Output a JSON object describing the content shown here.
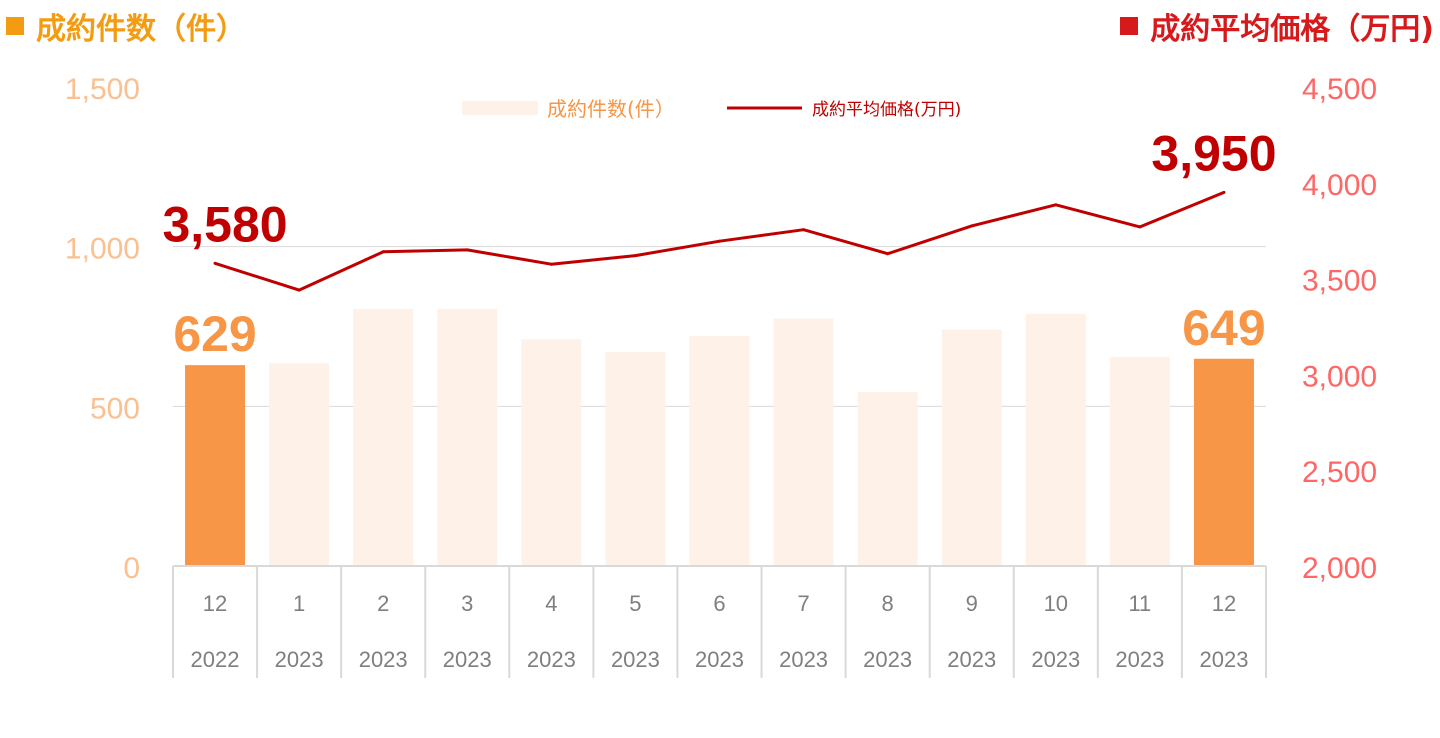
{
  "header": {
    "left_title": "成約件数（件）",
    "right_title": "成約平均価格（万円)"
  },
  "colors": {
    "bar_highlight": "#F79646",
    "bar_light": "#FDF1E8",
    "line": "#C00000",
    "left_axis_text": "#FAC090",
    "right_axis_text": "#FF6666",
    "left_title": "#F39C12",
    "right_title": "#D7191C",
    "gridline": "#D9D9D9",
    "category_text": "#7F7F7F",
    "category_border": "#D9D9D9"
  },
  "chart_data": {
    "type": "bar",
    "categories": [
      {
        "month": "12",
        "year": "2022"
      },
      {
        "month": "1",
        "year": "2023"
      },
      {
        "month": "2",
        "year": "2023"
      },
      {
        "month": "3",
        "year": "2023"
      },
      {
        "month": "4",
        "year": "2023"
      },
      {
        "month": "5",
        "year": "2023"
      },
      {
        "month": "6",
        "year": "2023"
      },
      {
        "month": "7",
        "year": "2023"
      },
      {
        "month": "8",
        "year": "2023"
      },
      {
        "month": "9",
        "year": "2023"
      },
      {
        "month": "10",
        "year": "2023"
      },
      {
        "month": "11",
        "year": "2023"
      },
      {
        "month": "12",
        "year": "2023"
      }
    ],
    "series": [
      {
        "name": "成約件数(件）",
        "type": "bar",
        "axis": "left",
        "values": [
          629,
          635,
          805,
          805,
          710,
          670,
          720,
          775,
          545,
          740,
          790,
          655,
          649
        ],
        "highlight_indices": [
          0,
          12
        ]
      },
      {
        "name": "成約平均価格(万円)",
        "type": "line",
        "axis": "right",
        "values": [
          3580,
          3440,
          3640,
          3650,
          3575,
          3620,
          3695,
          3755,
          3630,
          3775,
          3885,
          3770,
          3950
        ]
      }
    ],
    "left_axis": {
      "ylim": [
        0,
        1500
      ],
      "ticks": [
        0,
        500,
        1000,
        1500
      ],
      "tick_labels": [
        "0",
        "500",
        "1,000",
        "1,500"
      ]
    },
    "right_axis": {
      "ylim": [
        2000,
        4500
      ],
      "ticks": [
        2000,
        2500,
        3000,
        3500,
        4000,
        4500
      ],
      "tick_labels": [
        "2,000",
        "2,500",
        "3,000",
        "3,500",
        "4,000",
        "4,500"
      ]
    },
    "annotations": [
      {
        "series": 0,
        "index": 0,
        "text": "629"
      },
      {
        "series": 0,
        "index": 12,
        "text": "649"
      },
      {
        "series": 1,
        "index": 0,
        "text": "3,580"
      },
      {
        "series": 1,
        "index": 12,
        "text": "3,950"
      }
    ],
    "legend": {
      "position": "top-center"
    },
    "grid": true
  }
}
